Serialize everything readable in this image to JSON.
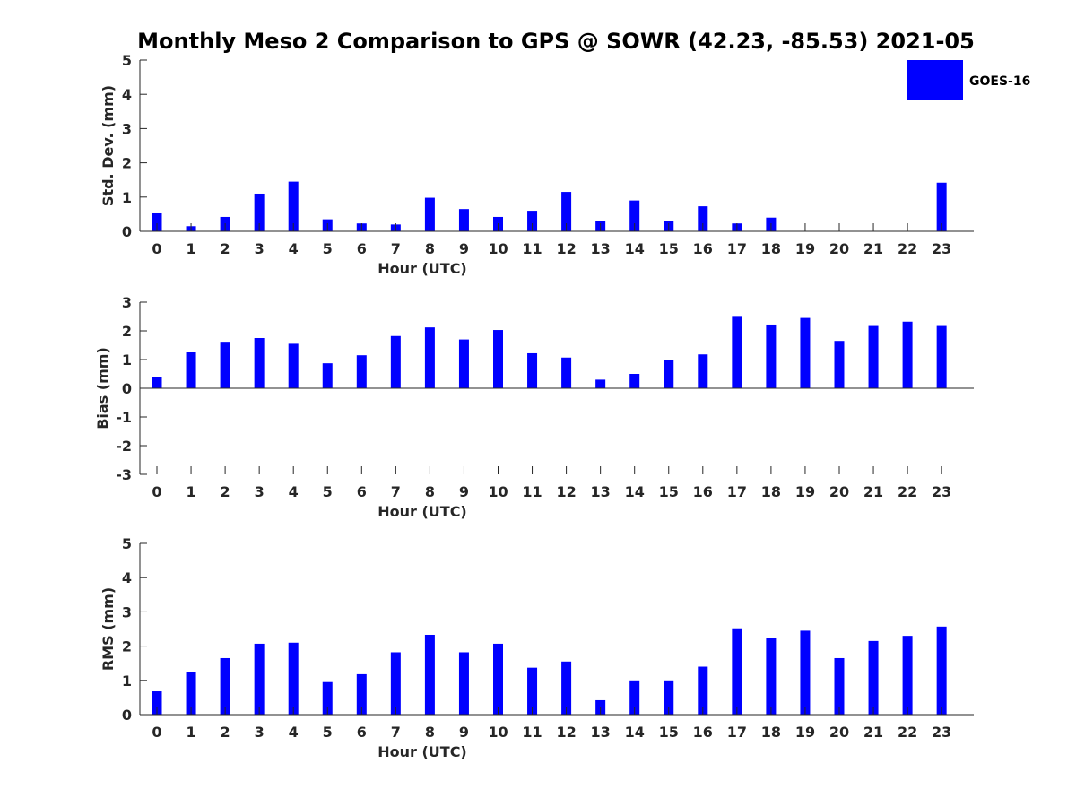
{
  "title": "Monthly Meso 2 Comparison to GPS @ SOWR (42.23, -85.53) 2021-05",
  "colors": {
    "bar": "#0000ff",
    "axis": "#262626"
  },
  "legend": {
    "label": "GOES-16",
    "placement": "top-right"
  },
  "chart_data": [
    {
      "type": "bar",
      "xlabel": "Hour (UTC)",
      "ylabel": "Std. Dev. (mm)",
      "ylim": [
        0,
        5
      ],
      "yticks": [
        0,
        1,
        2,
        3,
        4,
        5
      ],
      "categories": [
        "0",
        "1",
        "2",
        "3",
        "4",
        "5",
        "6",
        "7",
        "8",
        "9",
        "10",
        "11",
        "12",
        "13",
        "14",
        "15",
        "16",
        "17",
        "18",
        "19",
        "20",
        "21",
        "22",
        "23"
      ],
      "series": [
        {
          "name": "GOES-16",
          "values": [
            0.55,
            0.15,
            0.42,
            1.1,
            1.45,
            0.35,
            0.23,
            0.2,
            0.98,
            0.65,
            0.42,
            0.6,
            1.15,
            0.3,
            0.9,
            0.3,
            0.73,
            0.23,
            0.4,
            0,
            0,
            0,
            0,
            1.42
          ]
        }
      ],
      "grid": false
    },
    {
      "type": "bar",
      "xlabel": "Hour (UTC)",
      "ylabel": "Bias (mm)",
      "ylim": [
        -3,
        3
      ],
      "yticks": [
        -3,
        -2,
        -1,
        0,
        1,
        2,
        3
      ],
      "categories": [
        "0",
        "1",
        "2",
        "3",
        "4",
        "5",
        "6",
        "7",
        "8",
        "9",
        "10",
        "11",
        "12",
        "13",
        "14",
        "15",
        "16",
        "17",
        "18",
        "19",
        "20",
        "21",
        "22",
        "23"
      ],
      "series": [
        {
          "name": "GOES-16",
          "values": [
            0.4,
            1.25,
            1.62,
            1.75,
            1.55,
            0.87,
            1.15,
            1.82,
            2.12,
            1.7,
            2.03,
            1.22,
            1.07,
            0.3,
            0.5,
            0.97,
            1.18,
            2.52,
            2.22,
            2.45,
            1.65,
            2.17,
            2.32,
            2.17
          ]
        }
      ],
      "grid": false
    },
    {
      "type": "bar",
      "xlabel": "Hour (UTC)",
      "ylabel": "RMS (mm)",
      "ylim": [
        0,
        5
      ],
      "yticks": [
        0,
        1,
        2,
        3,
        4,
        5
      ],
      "categories": [
        "0",
        "1",
        "2",
        "3",
        "4",
        "5",
        "6",
        "7",
        "8",
        "9",
        "10",
        "11",
        "12",
        "13",
        "14",
        "15",
        "16",
        "17",
        "18",
        "19",
        "20",
        "21",
        "22",
        "23"
      ],
      "series": [
        {
          "name": "GOES-16",
          "values": [
            0.68,
            1.25,
            1.65,
            2.07,
            2.1,
            0.95,
            1.18,
            1.82,
            2.33,
            1.82,
            2.07,
            1.37,
            1.55,
            0.42,
            1.0,
            1.0,
            1.4,
            2.52,
            2.25,
            2.45,
            1.65,
            2.15,
            2.3,
            2.57
          ]
        }
      ],
      "grid": false
    }
  ]
}
